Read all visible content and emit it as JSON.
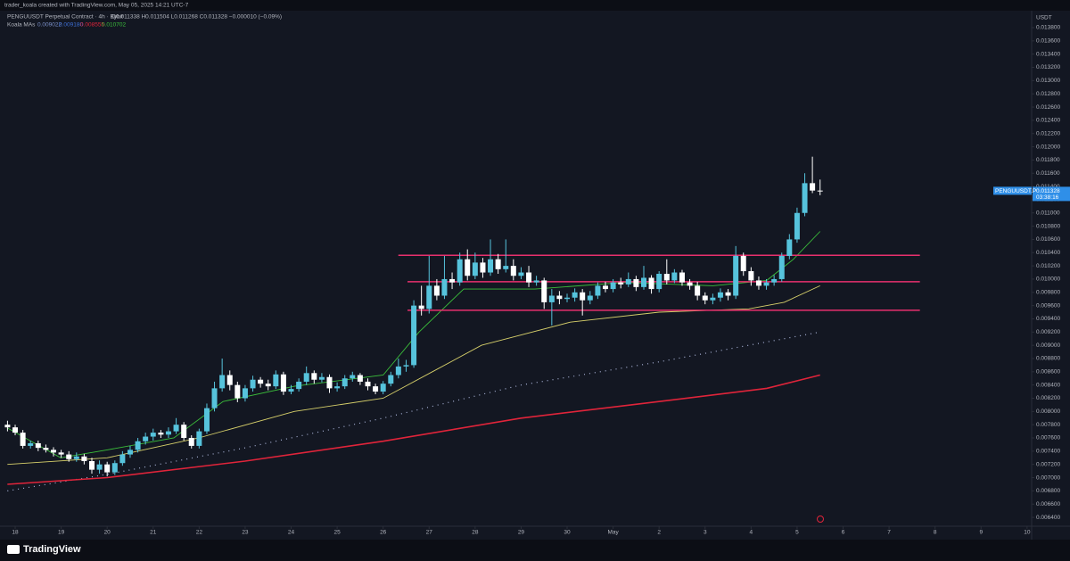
{
  "chart_data": {
    "type": "candlestick",
    "header": {
      "author_line": "trader_koala created with TradingView.com, May 05, 2025 14:21 UTC-7",
      "symbol_line": "PENGUUSDT Perpetual Contract · 4h · Bybit",
      "ohlc_line": "O0.011338 H0.011504 L0.011268 C0.011328 −0.000010 (−0.09%)",
      "indicator": "Koala MAs",
      "indicator_values": [
        {
          "text": "0.009022",
          "color": "#7a8fc7"
        },
        {
          "text": "0.009180",
          "color": "#3d6fd6"
        },
        {
          "text": "0.008555",
          "color": "#e0243a"
        },
        {
          "text": "0.010702",
          "color": "#3bbf3b"
        }
      ]
    },
    "currency": "USDT",
    "brand": "TradingView",
    "up_color": "#56c3dc",
    "down_color": "#ffffff",
    "xlim": [
      17.67,
      40.1
    ],
    "xticks": [
      18,
      19,
      20,
      21,
      22,
      23,
      24,
      25,
      26,
      27,
      28,
      29,
      30,
      {
        "value": 31,
        "label": "May"
      },
      {
        "value": 32,
        "label": "2"
      },
      {
        "value": 33,
        "label": "3"
      },
      {
        "value": 34,
        "label": "4"
      },
      {
        "value": 35,
        "label": "5"
      },
      {
        "value": 36,
        "label": "6"
      },
      {
        "value": 37,
        "label": "7"
      },
      {
        "value": 38,
        "label": "8"
      },
      {
        "value": 39,
        "label": "9"
      },
      {
        "value": 40,
        "label": "10"
      }
    ],
    "ylim": [
      0.006266,
      0.014056
    ],
    "yticks": [
      {
        "value": 0.0064,
        "label": "0.006400"
      },
      {
        "value": 0.0066,
        "label": "0.006600"
      },
      {
        "value": 0.0068,
        "label": "0.006800"
      },
      {
        "value": 0.007,
        "label": "0.007000"
      },
      {
        "value": 0.0072,
        "label": "0.007200"
      },
      {
        "value": 0.0074,
        "label": "0.007400"
      },
      {
        "value": 0.0076,
        "label": "0.007600"
      },
      {
        "value": 0.0078,
        "label": "0.007800"
      },
      {
        "value": 0.008,
        "label": "0.008000"
      },
      {
        "value": 0.0082,
        "label": "0.008200"
      },
      {
        "value": 0.0084,
        "label": "0.008400"
      },
      {
        "value": 0.0086,
        "label": "0.008600"
      },
      {
        "value": 0.0088,
        "label": "0.008800"
      },
      {
        "value": 0.009,
        "label": "0.009000"
      },
      {
        "value": 0.0092,
        "label": "0.009200"
      },
      {
        "value": 0.0094,
        "label": "0.009400"
      },
      {
        "value": 0.0096,
        "label": "0.009600"
      },
      {
        "value": 0.0098,
        "label": "0.009800"
      },
      {
        "value": 0.01,
        "label": "0.010000"
      },
      {
        "value": 0.0102,
        "label": "0.010200"
      },
      {
        "value": 0.0104,
        "label": "0.010400"
      },
      {
        "value": 0.0106,
        "label": "0.010600"
      },
      {
        "value": 0.0108,
        "label": "0.010800"
      },
      {
        "value": 0.011,
        "label": "0.011000"
      },
      {
        "value": 0.0112,
        "label": "0.011200"
      },
      {
        "value": 0.0114,
        "label": "0.011400"
      },
      {
        "value": 0.0116,
        "label": "0.011600"
      },
      {
        "value": 0.0118,
        "label": "0.011800"
      },
      {
        "value": 0.012,
        "label": "0.012000"
      },
      {
        "value": 0.0122,
        "label": "0.012200"
      },
      {
        "value": 0.0124,
        "label": "0.012400"
      },
      {
        "value": 0.0126,
        "label": "0.012600"
      },
      {
        "value": 0.0128,
        "label": "0.012800"
      },
      {
        "value": 0.013,
        "label": "0.013000"
      },
      {
        "value": 0.0132,
        "label": "0.013200"
      },
      {
        "value": 0.0134,
        "label": "0.013400"
      },
      {
        "value": 0.0136,
        "label": "0.013600"
      },
      {
        "value": 0.0138,
        "label": "0.013800"
      }
    ],
    "series": [
      {
        "x": [
          17.833,
          18,
          18.167,
          18.333,
          18.5,
          18.667,
          18.833,
          19,
          19.167,
          19.333,
          19.5,
          19.667,
          19.833,
          20,
          20.167,
          20.333,
          20.5,
          20.667,
          20.833,
          21,
          21.167,
          21.333,
          21.5,
          21.667,
          21.833,
          22,
          22.167,
          22.333,
          22.5,
          22.667,
          22.833,
          23,
          23.167,
          23.333,
          23.5,
          23.667,
          23.833,
          24,
          24.167,
          24.333,
          24.5,
          24.667,
          24.833,
          25,
          25.167,
          25.333,
          25.5,
          25.667,
          25.833,
          26,
          26.167,
          26.333,
          26.5,
          26.667,
          26.833,
          27,
          27.167,
          27.333,
          27.5,
          27.667,
          27.833,
          28,
          28.167,
          28.333,
          28.5,
          28.667,
          28.833,
          29,
          29.167,
          29.333,
          29.5,
          29.667,
          29.833,
          30,
          30.167,
          30.333,
          30.5,
          30.667,
          30.833,
          31,
          31.167,
          31.333,
          31.5,
          31.667,
          31.833,
          32,
          32.167,
          32.333,
          32.5,
          32.667,
          32.833,
          33,
          33.167,
          33.333,
          33.5,
          33.667,
          33.833,
          34,
          34.167,
          34.333,
          34.5,
          34.667,
          34.833,
          35,
          35.167,
          35.333,
          35.5
        ],
        "open": [
          0.0078,
          0.00776,
          0.00768,
          0.00748,
          0.00752,
          0.00745,
          0.00742,
          0.00738,
          0.00735,
          0.00728,
          0.00732,
          0.00725,
          0.00712,
          0.0072,
          0.00708,
          0.00722,
          0.00735,
          0.00742,
          0.00755,
          0.00762,
          0.00768,
          0.00765,
          0.0077,
          0.0078,
          0.0076,
          0.00748,
          0.0077,
          0.00805,
          0.00835,
          0.00855,
          0.0084,
          0.0082,
          0.00835,
          0.00848,
          0.00842,
          0.00838,
          0.00856,
          0.0083,
          0.00834,
          0.00845,
          0.00858,
          0.00848,
          0.00852,
          0.00835,
          0.00838,
          0.0085,
          0.00855,
          0.00845,
          0.00838,
          0.0083,
          0.00842,
          0.00855,
          0.00868,
          0.0087,
          0.0096,
          0.00955,
          0.0099,
          0.00975,
          0.01,
          0.00995,
          0.0103,
          0.01005,
          0.01025,
          0.0101,
          0.0103,
          0.01015,
          0.0102,
          0.01005,
          0.0101,
          0.00995,
          0.00998,
          0.00965,
          0.00975,
          0.0097,
          0.00972,
          0.0098,
          0.00968,
          0.00975,
          0.0099,
          0.00985,
          0.00995,
          0.00992,
          0.01,
          0.00988,
          0.01002,
          0.00985,
          0.01008,
          0.00998,
          0.0101,
          0.00995,
          0.0099,
          0.00975,
          0.00968,
          0.00972,
          0.0098,
          0.00975,
          0.01035,
          0.01012,
          0.00998,
          0.0099,
          0.00995,
          0.01,
          0.01035,
          0.0106,
          0.011,
          0.01145,
          0.011338
        ],
        "high": [
          0.00786,
          0.0078,
          0.00772,
          0.00756,
          0.00756,
          0.0075,
          0.00746,
          0.00742,
          0.0074,
          0.00738,
          0.00736,
          0.0073,
          0.00726,
          0.00724,
          0.00726,
          0.0074,
          0.00748,
          0.0076,
          0.00768,
          0.00774,
          0.00772,
          0.00776,
          0.0079,
          0.00784,
          0.00764,
          0.00774,
          0.00812,
          0.00845,
          0.0088,
          0.00862,
          0.00845,
          0.0084,
          0.00854,
          0.00852,
          0.00848,
          0.00862,
          0.0086,
          0.0084,
          0.0085,
          0.00868,
          0.00862,
          0.00858,
          0.00856,
          0.00844,
          0.00855,
          0.0086,
          0.00858,
          0.0085,
          0.00842,
          0.00846,
          0.0086,
          0.0088,
          0.00878,
          0.00968,
          0.0099,
          0.01035,
          0.01,
          0.01035,
          0.0101,
          0.0104,
          0.01045,
          0.0104,
          0.01032,
          0.0106,
          0.01038,
          0.0106,
          0.0103,
          0.01018,
          0.0102,
          0.01005,
          0.01002,
          0.00985,
          0.00982,
          0.00978,
          0.00986,
          0.00985,
          0.00982,
          0.00995,
          0.00996,
          0.01,
          0.01002,
          0.0101,
          0.01005,
          0.0102,
          0.01006,
          0.01012,
          0.0103,
          0.01015,
          0.01014,
          0.01,
          0.00996,
          0.0098,
          0.00978,
          0.00986,
          0.00985,
          0.0105,
          0.0104,
          0.01018,
          0.01004,
          0.01,
          0.01006,
          0.0104,
          0.01068,
          0.01108,
          0.0116,
          0.01185,
          0.011504
        ],
        "low": [
          0.0077,
          0.00764,
          0.00744,
          0.00744,
          0.0074,
          0.00738,
          0.00732,
          0.0073,
          0.00724,
          0.00724,
          0.0072,
          0.00706,
          0.00706,
          0.00702,
          0.00704,
          0.00718,
          0.0073,
          0.00738,
          0.0075,
          0.00756,
          0.0076,
          0.0076,
          0.00766,
          0.00756,
          0.00744,
          0.00744,
          0.00766,
          0.008,
          0.0083,
          0.00832,
          0.00814,
          0.00815,
          0.0083,
          0.00836,
          0.00832,
          0.00834,
          0.00825,
          0.00826,
          0.0083,
          0.0084,
          0.00842,
          0.00844,
          0.00828,
          0.0083,
          0.00834,
          0.00845,
          0.0084,
          0.00832,
          0.00826,
          0.00826,
          0.00838,
          0.0085,
          0.0086,
          0.00866,
          0.00945,
          0.00948,
          0.00968,
          0.0097,
          0.00985,
          0.0099,
          0.00998,
          0.01,
          0.01002,
          0.01005,
          0.01008,
          0.0101,
          0.00998,
          0.01,
          0.00988,
          0.0099,
          0.00955,
          0.0093,
          0.00962,
          0.00965,
          0.00966,
          0.00945,
          0.00962,
          0.0097,
          0.0098,
          0.0098,
          0.00986,
          0.00988,
          0.00982,
          0.00984,
          0.00978,
          0.0098,
          0.00992,
          0.00994,
          0.0099,
          0.00984,
          0.00968,
          0.00962,
          0.00962,
          0.00966,
          0.00968,
          0.0097,
          0.01005,
          0.0099,
          0.00984,
          0.00984,
          0.0099,
          0.00996,
          0.0103,
          0.01055,
          0.01095,
          0.0113,
          0.011268
        ],
        "close": [
          0.00776,
          0.00768,
          0.00748,
          0.00752,
          0.00745,
          0.00742,
          0.00738,
          0.00735,
          0.00728,
          0.00732,
          0.00725,
          0.00712,
          0.0072,
          0.00708,
          0.00722,
          0.00735,
          0.00742,
          0.00755,
          0.00762,
          0.00768,
          0.00765,
          0.0077,
          0.0078,
          0.0076,
          0.00748,
          0.0077,
          0.00805,
          0.00835,
          0.00855,
          0.0084,
          0.0082,
          0.00835,
          0.00848,
          0.00842,
          0.00838,
          0.00856,
          0.0083,
          0.00834,
          0.00845,
          0.00858,
          0.00848,
          0.00852,
          0.00835,
          0.00838,
          0.0085,
          0.00855,
          0.00845,
          0.00838,
          0.0083,
          0.00842,
          0.00855,
          0.00868,
          0.0087,
          0.0096,
          0.00955,
          0.0099,
          0.00975,
          0.01,
          0.00995,
          0.0103,
          0.01005,
          0.01025,
          0.0101,
          0.0103,
          0.01015,
          0.0102,
          0.01005,
          0.0101,
          0.00995,
          0.00998,
          0.00965,
          0.00975,
          0.0097,
          0.00972,
          0.0098,
          0.00968,
          0.00975,
          0.0099,
          0.00985,
          0.00995,
          0.00992,
          0.01,
          0.00988,
          0.01002,
          0.00985,
          0.01008,
          0.00998,
          0.0101,
          0.00995,
          0.0099,
          0.00975,
          0.00968,
          0.00972,
          0.0098,
          0.00975,
          0.01035,
          0.01012,
          0.00998,
          0.0099,
          0.00995,
          0.01,
          0.01035,
          0.0106,
          0.011,
          0.01145,
          0.011338,
          0.011328
        ]
      }
    ],
    "moving_averages": [
      {
        "color": "#3bbf3b",
        "dashed": false,
        "x": [
          17.83,
          18.99,
          20,
          21.45,
          22.52,
          24.07,
          26,
          26.78,
          27.75,
          29.3,
          31.24,
          33.17,
          34.34,
          34.92,
          35.5
        ],
        "values": [
          0.00775,
          0.0073,
          0.00742,
          0.0076,
          0.00815,
          0.00838,
          0.00855,
          0.0092,
          0.00985,
          0.00985,
          0.00995,
          0.0099,
          0.00998,
          0.0103,
          0.01072
        ]
      },
      {
        "color": "#d6cf6a",
        "dashed": false,
        "x": [
          17.83,
          20,
          21.99,
          24.07,
          26,
          27.07,
          28.14,
          30.07,
          32,
          33.95,
          34.72,
          35.5
        ],
        "values": [
          0.0072,
          0.0073,
          0.0076,
          0.008,
          0.0082,
          0.0086,
          0.009,
          0.00935,
          0.0095,
          0.00955,
          0.00965,
          0.0099
        ]
      },
      {
        "color": "#aab4d8",
        "dashed": true,
        "x": [
          17.83,
          20,
          23,
          26,
          29,
          32,
          34.34,
          35.5
        ],
        "values": [
          0.0068,
          0.00705,
          0.00745,
          0.0079,
          0.0084,
          0.00875,
          0.00905,
          0.0092
        ]
      },
      {
        "color": "#e0243a",
        "dashed": false,
        "x": [
          17.83,
          20,
          23,
          26,
          29,
          32,
          34.34,
          35.5
        ],
        "values": [
          0.0069,
          0.007,
          0.00725,
          0.00755,
          0.0079,
          0.00815,
          0.00835,
          0.00855
        ]
      }
    ],
    "horizontal_lines": [
      {
        "price": 0.01036,
        "x_start": 26.33,
        "x_end": 37.67
      },
      {
        "price": 0.00996,
        "x_start": 26.53,
        "x_end": 37.67
      },
      {
        "price": 0.00953,
        "x_start": 26.53,
        "x_end": 37.67
      }
    ],
    "line_color": "#e8306e",
    "last_price": {
      "symbol": "PENGUUSDT.P",
      "price": {
        "value": 0.011328,
        "label": "0.011328"
      },
      "countdown": "03:38:16",
      "color": "#2f8fe8"
    }
  }
}
